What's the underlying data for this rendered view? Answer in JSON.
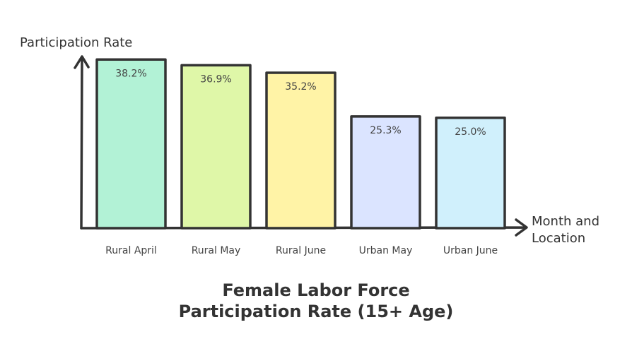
{
  "chart_data": {
    "type": "bar",
    "title": "Female Labor Force Participation Rate (15+ Age)",
    "y_label": "Participation Rate",
    "x_label": "Month and Location",
    "categories": [
      "Rural April",
      "Rural May",
      "Rural June",
      "Urban May",
      "Urban June"
    ],
    "values": [
      38.2,
      36.9,
      35.2,
      25.3,
      25.0
    ],
    "value_labels": [
      "38.2%",
      "36.9%",
      "35.2%",
      "25.3%",
      "25.0%"
    ],
    "colors": [
      "#b2f2d6",
      "#dff7a8",
      "#fff3a6",
      "#dbe4ff",
      "#d0f0fc"
    ],
    "ylim": [
      0,
      40
    ]
  }
}
